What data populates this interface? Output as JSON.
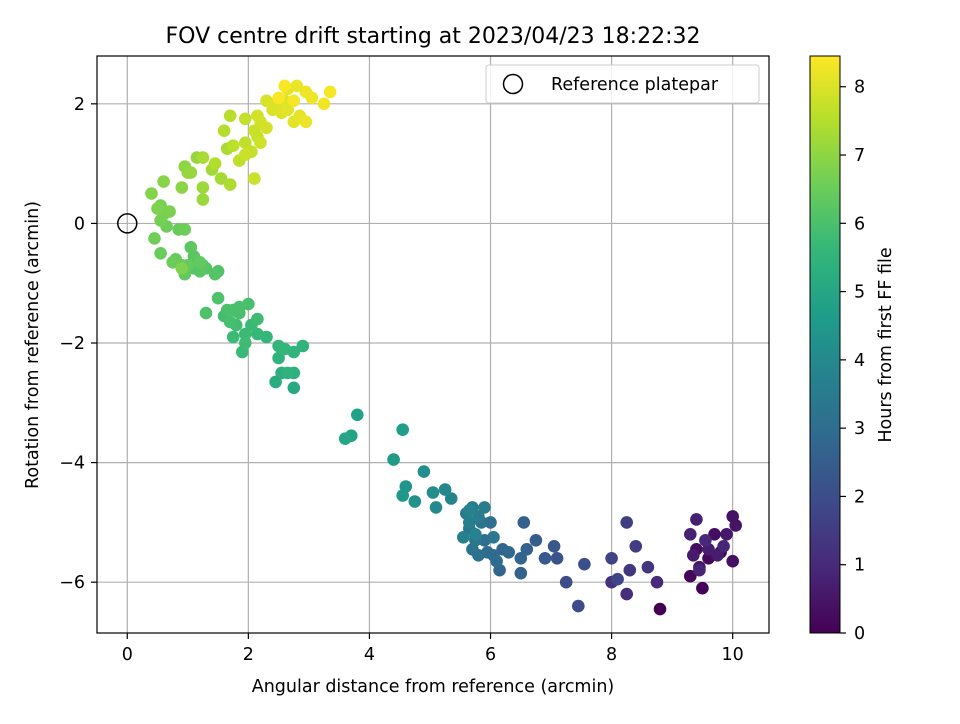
{
  "chart_data": {
    "type": "scatter",
    "title": "FOV centre drift starting at 2023/04/23 18:22:32",
    "xlabel": "Angular distance from reference (arcmin)",
    "ylabel": "Rotation from reference (arcmin)",
    "xlim": [
      -0.5,
      10.6
    ],
    "ylim": [
      -6.85,
      2.8
    ],
    "xticks": [
      0,
      2,
      4,
      6,
      8,
      10
    ],
    "yticks": [
      -6,
      -4,
      -2,
      0,
      2
    ],
    "grid": true,
    "legend": {
      "placement": "top-right",
      "entries": [
        {
          "label": "Reference platepar",
          "marker": "open-circle"
        }
      ]
    },
    "reference_point": {
      "x": 0,
      "y": 0
    },
    "colorbar": {
      "label": "Hours from first FF file",
      "range": [
        0,
        8.45
      ],
      "ticks": [
        0,
        1,
        2,
        3,
        4,
        5,
        6,
        7,
        8
      ],
      "colormap": "viridis",
      "colors": [
        "#440154",
        "#482878",
        "#3e4989",
        "#31688e",
        "#26828e",
        "#1f9e89",
        "#35b779",
        "#6ece58",
        "#b5de2b",
        "#fde725"
      ]
    },
    "columns": [
      "x",
      "y",
      "hours"
    ],
    "points": [
      [
        8.8,
        -6.45,
        0.0
      ],
      [
        9.5,
        -6.1,
        0.05
      ],
      [
        9.8,
        -5.5,
        0.1
      ],
      [
        9.3,
        -5.9,
        0.15
      ],
      [
        9.6,
        -5.6,
        0.2
      ],
      [
        9.4,
        -5.45,
        0.25
      ],
      [
        9.7,
        -5.2,
        0.3
      ],
      [
        10.0,
        -5.65,
        0.35
      ],
      [
        10.0,
        -4.9,
        0.4
      ],
      [
        10.05,
        -5.05,
        0.45
      ],
      [
        9.45,
        -5.75,
        0.5
      ],
      [
        9.9,
        -5.2,
        0.55
      ],
      [
        9.35,
        -5.55,
        0.6
      ],
      [
        9.75,
        -5.55,
        0.65
      ],
      [
        9.6,
        -5.45,
        0.7
      ],
      [
        9.4,
        -4.95,
        0.75
      ],
      [
        9.3,
        -5.2,
        0.8
      ],
      [
        9.45,
        -5.8,
        0.85
      ],
      [
        9.85,
        -5.4,
        0.9
      ],
      [
        9.55,
        -5.3,
        0.95
      ],
      [
        8.75,
        -6.0,
        1.0
      ],
      [
        8.25,
        -6.2,
        1.1
      ],
      [
        8.0,
        -6.0,
        1.2
      ],
      [
        8.6,
        -5.75,
        1.3
      ],
      [
        8.3,
        -5.8,
        1.4
      ],
      [
        8.4,
        -5.4,
        1.5
      ],
      [
        8.25,
        -5.0,
        1.6
      ],
      [
        8.0,
        -5.6,
        1.7
      ],
      [
        8.1,
        -5.95,
        1.8
      ],
      [
        7.45,
        -6.4,
        1.9
      ],
      [
        7.25,
        -6.0,
        2.0
      ],
      [
        7.55,
        -5.7,
        2.1
      ],
      [
        7.1,
        -5.6,
        2.2
      ],
      [
        7.05,
        -5.4,
        2.3
      ],
      [
        6.9,
        -5.6,
        2.4
      ],
      [
        6.75,
        -5.3,
        2.5
      ],
      [
        6.55,
        -5.0,
        2.55
      ],
      [
        6.6,
        -5.45,
        2.6
      ],
      [
        6.5,
        -5.85,
        2.65
      ],
      [
        6.5,
        -5.6,
        2.7
      ],
      [
        6.2,
        -5.45,
        2.75
      ],
      [
        6.15,
        -5.8,
        2.8
      ],
      [
        6.3,
        -5.5,
        2.85
      ],
      [
        6.05,
        -5.55,
        2.9
      ],
      [
        5.95,
        -5.5,
        2.95
      ],
      [
        6.1,
        -5.65,
        3.0
      ],
      [
        5.9,
        -5.3,
        3.05
      ],
      [
        6.0,
        -5.0,
        3.1
      ],
      [
        5.8,
        -5.55,
        3.15
      ],
      [
        5.7,
        -5.45,
        3.2
      ],
      [
        5.85,
        -5.0,
        3.25
      ],
      [
        5.65,
        -5.1,
        3.3
      ],
      [
        6.05,
        -5.25,
        3.35
      ],
      [
        5.75,
        -5.3,
        3.4
      ],
      [
        5.6,
        -4.85,
        3.45
      ],
      [
        5.7,
        -4.75,
        3.5
      ],
      [
        5.9,
        -4.75,
        3.55
      ],
      [
        5.8,
        -4.9,
        3.6
      ],
      [
        5.65,
        -5.0,
        3.65
      ],
      [
        5.55,
        -5.25,
        3.7
      ],
      [
        5.75,
        -5.2,
        3.75
      ],
      [
        5.65,
        -4.8,
        3.8
      ],
      [
        5.35,
        -4.6,
        3.85
      ],
      [
        5.25,
        -4.45,
        3.9
      ],
      [
        5.1,
        -4.75,
        4.0
      ],
      [
        5.05,
        -4.5,
        4.1
      ],
      [
        4.9,
        -4.15,
        4.2
      ],
      [
        4.75,
        -4.65,
        4.3
      ],
      [
        4.6,
        -4.4,
        4.4
      ],
      [
        4.55,
        -4.55,
        4.5
      ],
      [
        4.4,
        -3.95,
        4.6
      ],
      [
        4.55,
        -3.45,
        4.7
      ],
      [
        3.8,
        -3.2,
        4.8
      ],
      [
        3.7,
        -3.55,
        4.9
      ],
      [
        3.6,
        -3.6,
        5.0
      ],
      [
        2.75,
        -2.75,
        5.1
      ],
      [
        2.45,
        -2.65,
        5.2
      ],
      [
        2.55,
        -2.5,
        5.3
      ],
      [
        2.75,
        -2.5,
        5.35
      ],
      [
        2.65,
        -2.5,
        5.4
      ],
      [
        2.5,
        -2.25,
        5.45
      ],
      [
        2.75,
        -2.15,
        5.5
      ],
      [
        2.9,
        -2.05,
        5.5
      ],
      [
        2.5,
        -2.05,
        5.55
      ],
      [
        2.6,
        -2.1,
        5.6
      ],
      [
        2.3,
        -1.9,
        5.6
      ],
      [
        2.15,
        -1.85,
        5.65
      ],
      [
        2.05,
        -1.7,
        5.7
      ],
      [
        1.9,
        -2.15,
        5.7
      ],
      [
        1.95,
        -1.85,
        5.75
      ],
      [
        1.75,
        -1.9,
        5.75
      ],
      [
        1.95,
        -2.0,
        5.8
      ],
      [
        2.15,
        -1.6,
        5.8
      ],
      [
        1.8,
        -1.7,
        5.85
      ],
      [
        1.6,
        -1.55,
        5.85
      ],
      [
        1.75,
        -1.45,
        5.9
      ],
      [
        1.7,
        -1.65,
        5.9
      ],
      [
        1.85,
        -1.5,
        5.95
      ],
      [
        2.0,
        -1.35,
        5.95
      ],
      [
        1.85,
        -1.4,
        6.0
      ],
      [
        1.65,
        -1.45,
        6.0
      ],
      [
        1.5,
        -1.25,
        6.05
      ],
      [
        1.3,
        -1.5,
        6.05
      ],
      [
        1.5,
        -0.8,
        6.1
      ],
      [
        1.45,
        -0.85,
        6.15
      ],
      [
        1.3,
        -0.75,
        6.15
      ],
      [
        1.2,
        -0.8,
        6.2
      ],
      [
        1.1,
        -0.75,
        6.2
      ],
      [
        1.25,
        -0.7,
        6.25
      ],
      [
        1.1,
        -0.55,
        6.25
      ],
      [
        1.05,
        -0.4,
        6.3
      ],
      [
        1.2,
        -0.65,
        6.35
      ],
      [
        0.95,
        -0.85,
        6.35
      ],
      [
        1.0,
        -0.7,
        6.4
      ],
      [
        0.9,
        -0.7,
        6.4
      ],
      [
        0.85,
        -0.1,
        6.45
      ],
      [
        0.8,
        -0.6,
        6.45
      ],
      [
        0.75,
        -0.65,
        6.5
      ],
      [
        0.55,
        -0.5,
        6.5
      ],
      [
        0.95,
        -0.1,
        6.55
      ],
      [
        0.65,
        -0.05,
        6.55
      ],
      [
        0.45,
        -0.25,
        6.6
      ],
      [
        0.55,
        0.05,
        6.65
      ],
      [
        0.6,
        0.15,
        6.7
      ],
      [
        0.55,
        0.3,
        6.7
      ],
      [
        0.7,
        0.2,
        6.75
      ],
      [
        0.5,
        0.25,
        6.8
      ],
      [
        0.9,
        -0.75,
        6.8
      ],
      [
        0.4,
        0.5,
        6.85
      ],
      [
        0.6,
        0.7,
        6.9
      ],
      [
        0.9,
        0.6,
        6.95
      ],
      [
        0.95,
        0.95,
        7.0
      ],
      [
        1.0,
        0.85,
        7.05
      ],
      [
        1.15,
        1.1,
        7.1
      ],
      [
        1.05,
        0.85,
        7.1
      ],
      [
        1.25,
        0.4,
        7.15
      ],
      [
        1.25,
        0.6,
        7.2
      ],
      [
        1.4,
        0.9,
        7.25
      ],
      [
        1.55,
        0.75,
        7.3
      ],
      [
        1.25,
        1.1,
        7.35
      ],
      [
        1.65,
        1.25,
        7.35
      ],
      [
        1.7,
        0.65,
        7.4
      ],
      [
        1.45,
        1.0,
        7.45
      ],
      [
        1.6,
        1.55,
        7.5
      ],
      [
        1.7,
        1.8,
        7.55
      ],
      [
        1.85,
        1.05,
        7.6
      ],
      [
        1.75,
        1.3,
        7.6
      ],
      [
        1.95,
        1.35,
        7.65
      ],
      [
        2.05,
        1.2,
        7.7
      ],
      [
        1.95,
        1.75,
        7.7
      ],
      [
        2.1,
        1.55,
        7.75
      ],
      [
        2.15,
        1.45,
        7.75
      ],
      [
        1.95,
        1.15,
        7.8
      ],
      [
        2.1,
        0.75,
        7.8
      ],
      [
        2.2,
        1.35,
        7.85
      ],
      [
        2.2,
        1.7,
        7.85
      ],
      [
        2.3,
        1.6,
        7.9
      ],
      [
        2.15,
        1.8,
        7.9
      ],
      [
        2.3,
        2.05,
        7.95
      ],
      [
        2.4,
        1.9,
        8.0
      ],
      [
        2.45,
        2.0,
        8.0
      ],
      [
        2.6,
        2.05,
        8.05
      ],
      [
        2.55,
        1.85,
        8.05
      ],
      [
        2.75,
        1.7,
        8.1
      ],
      [
        2.65,
        1.9,
        8.1
      ],
      [
        2.85,
        1.8,
        8.15
      ],
      [
        2.65,
        2.25,
        8.15
      ],
      [
        2.8,
        2.3,
        8.2
      ],
      [
        2.95,
        1.7,
        8.2
      ],
      [
        2.95,
        2.2,
        8.25
      ],
      [
        3.05,
        2.1,
        8.25
      ],
      [
        3.25,
        2.0,
        8.3
      ],
      [
        3.35,
        2.2,
        8.35
      ],
      [
        2.75,
        2.05,
        8.35
      ],
      [
        2.6,
        2.3,
        8.4
      ],
      [
        2.5,
        2.1,
        8.4
      ]
    ]
  }
}
